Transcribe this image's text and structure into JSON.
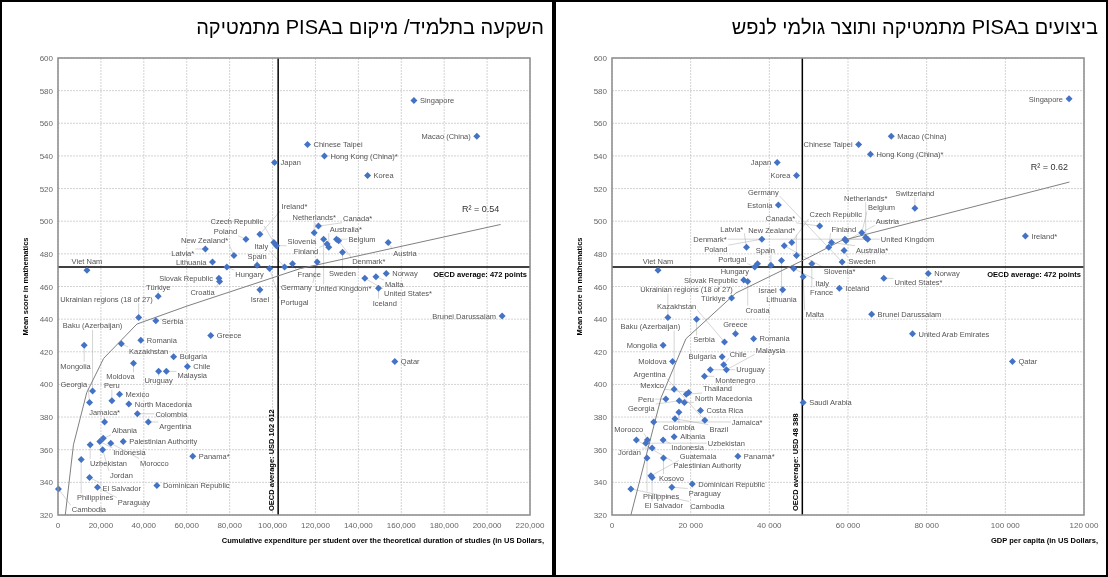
{
  "chart_data": [
    {
      "type": "scatter",
      "title": "השקעה בתלמיד/ מיקום בPISA מתמטיקה",
      "xlabel": "Cumulative expenditure per student over the theoretical duration of studies (in US Dollars,",
      "ylabel": "Mean score in mathematics",
      "xlim": [
        0,
        220000
      ],
      "xticks": [
        0,
        {
          "value": 20000,
          "label": "20,000"
        },
        {
          "value": 40000,
          "label": "40,000"
        },
        {
          "value": 60000,
          "label": "60,000"
        },
        {
          "value": 80000,
          "label": "80,000"
        },
        {
          "value": 100000,
          "label": "100,000"
        },
        {
          "value": 120000,
          "label": "120,000"
        },
        {
          "value": 140000,
          "label": "140,000"
        },
        {
          "value": 160000,
          "label": "160,000"
        },
        {
          "value": 180000,
          "label": "180,000"
        },
        {
          "value": 200000,
          "label": "200,000"
        },
        {
          "value": 220000,
          "label": "220,000"
        }
      ],
      "ylim": [
        320,
        600
      ],
      "yticks": [
        320,
        340,
        360,
        380,
        400,
        420,
        440,
        460,
        480,
        500,
        520,
        540,
        560,
        580,
        600
      ],
      "grid": true,
      "marker": "diamond",
      "series": [
        {
          "color": "#4472c4",
          "x": [
            100900,
            13500,
            94100,
            87600,
            68700,
            82000,
            72000,
            78700,
            92800,
            98600,
            100600,
            101800,
            109300,
            105600,
            75000,
            75300,
            94100,
            46700,
            119400,
            121400,
            123800,
            126200,
            125400,
            129800,
            130800,
            132600,
            120800,
            153900,
            148200,
            143000,
            153000,
            149400,
            165900,
            195200,
            116300,
            124200,
            144300,
            207000,
            157000,
            37600,
            45600,
            71200,
            29500,
            12200,
            38600,
            53900,
            35200,
            60300,
            46900,
            50500,
            16100,
            14700,
            28700,
            25100,
            33000,
            37000,
            21700,
            42100,
            21100,
            19500,
            15000,
            20800,
            24600,
            30400,
            10800,
            62800,
            14700,
            200,
            18400,
            46100
          ],
          "values": [
            536,
            470,
            492,
            489,
            483,
            479,
            475,
            472,
            473,
            471,
            487,
            485,
            474,
            472,
            465,
            463,
            458,
            454,
            493,
            497,
            489,
            484,
            486,
            489,
            488,
            481,
            475,
            487,
            466,
            465,
            468,
            459,
            574,
            552,
            547,
            540,
            528,
            442,
            414,
            441,
            439,
            430,
            425,
            424,
            427,
            417,
            413,
            411,
            408,
            408,
            396,
            389,
            394,
            390,
            388,
            382,
            377,
            377,
            367,
            365,
            363,
            360,
            364,
            365,
            354,
            356,
            343,
            336,
            337,
            338
          ],
          "value_labels": [
            "Japan",
            "Viet Nam",
            "Ireland*",
            "Poland",
            "Latvia*",
            "New Zealand*",
            "Lithuania",
            "Hungary",
            "Spain",
            "Portugal",
            "Czech Republic",
            "Slovenia",
            "France",
            "Italy",
            "Slovak Republic",
            "Croatia",
            "Israel",
            "Türkiye",
            "Netherlands*",
            "Canada*",
            "United Kingdom*",
            "Australia*",
            "Finland",
            "Belgium",
            "Denmark*",
            "Sweden",
            "Germany",
            "Austria",
            "Malta",
            "United States*",
            "Norway",
            "Iceland",
            "Singapore",
            "Macao (China)",
            "Chinese Taipei",
            "Hong Kong (China)*",
            "Korea",
            "Brunei Darussalam",
            "Qatar",
            "Ukrainian regions (18 of 27)",
            "Serbia",
            "Greece",
            "Kazakhstan",
            "Mongolia",
            "Romania",
            "Bulgaria",
            "Moldova",
            "Chile",
            "Uruguay",
            "Malaysia",
            "Baku (Azerbaijan)",
            "Georgia",
            "Mexico",
            "Peru",
            "North Macedonia",
            "Colombia",
            "Jamaica*",
            "Argentina",
            "Albania",
            "Indonesia",
            "Uzbekistan",
            "Jordan",
            "Morocco",
            "Palestinian Authority",
            "Philippines",
            "Panama*",
            "El Salvador",
            "Cambodia",
            "Paraguay",
            "Dominican Republic"
          ]
        },
        {
          "type": "line",
          "color": "#808080",
          "marker": "none",
          "x": [
            3400,
            7200,
            13400,
            21300,
            36800,
            60100,
            113000,
            206300
          ],
          "values": [
            320,
            363,
            395,
            416,
            437,
            448,
            471,
            498
          ]
        }
      ],
      "ref_lines": [
        {
          "axis": "y",
          "value": 472,
          "label": "OECD average: 472 points",
          "color": "#000000"
        },
        {
          "axis": "x",
          "value": 102612,
          "label": "OECD average: USD 102 612",
          "color": "#000000"
        }
      ],
      "annotations": [
        "R² = 0.54"
      ]
    },
    {
      "type": "scatter",
      "title": "ביצועים בPISA מתמטיקה ותוצר גולמי לנפש",
      "xlabel": "GDP per capita (in US Dollars,",
      "ylabel": "Mean score in mathematics",
      "xlim": [
        0,
        120000
      ],
      "xticks": [
        0,
        {
          "value": 20000,
          "label": "20 000"
        },
        {
          "value": 40000,
          "label": "40 000"
        },
        {
          "value": 60000,
          "label": "60 000"
        },
        {
          "value": 80000,
          "label": "80 000"
        },
        {
          "value": 100000,
          "label": "100 000"
        },
        {
          "value": 120000,
          "label": "120 000"
        }
      ],
      "ylim": [
        320,
        600
      ],
      "yticks": [
        320,
        340,
        360,
        380,
        400,
        420,
        440,
        460,
        480,
        500,
        520,
        540,
        560,
        580,
        600
      ],
      "grid": true,
      "marker": "diamond",
      "series": [
        {
          "color": "#4472c4",
          "x": [
            42000,
            46900,
            42300,
            52800,
            38100,
            45700,
            43800,
            59200,
            34200,
            55100,
            55800,
            63500,
            64500,
            65000,
            59500,
            59000,
            58500,
            46900,
            43100,
            50800,
            46200,
            40400,
            37000,
            36300,
            33500,
            34500,
            43400,
            48600,
            11700,
            30400,
            21500,
            14200,
            31400,
            36000,
            28600,
            13000,
            28000,
            15400,
            28400,
            29100,
            25000,
            23500,
            15800,
            19500,
            18900,
            13700,
            17100,
            18400,
            22500,
            17000,
            16000,
            23600,
            10600,
            15800,
            6200,
            9000,
            13000,
            8600,
            10200,
            13100,
            8900,
            32000,
            9900,
            10200,
            4800,
            15200,
            20400,
            48600,
            116200,
            71000,
            62700,
            65700,
            77000,
            105100,
            69100,
            80400,
            57800,
            66000,
            76400,
            101800
          ],
          "values": [
            536,
            528,
            510,
            497,
            489,
            487,
            485,
            489,
            484,
            484,
            487,
            493,
            490,
            489,
            488,
            482,
            475,
            479,
            476,
            474,
            471,
            473,
            474,
            472,
            464,
            463,
            458,
            466,
            470,
            453,
            440,
            441,
            431,
            428,
            426,
            424,
            417,
            414,
            412,
            409,
            409,
            405,
            397,
            395,
            394,
            391,
            390,
            389,
            384,
            383,
            379,
            378,
            377,
            368,
            366,
            366,
            366,
            364,
            361,
            355,
            355,
            356,
            344,
            343,
            336,
            337,
            339,
            389,
            575,
            552,
            547,
            541,
            508,
            491,
            465,
            468,
            459,
            443,
            431,
            414
          ],
          "value_labels": [
            "Japan",
            "Korea",
            "Estonia",
            "Canada*",
            "Poland",
            "Czech Republic",
            "Slovenia*",
            "United Kingdom",
            "Latvia*",
            "Finland",
            "Australia*",
            "Belgium",
            "Netherlands*",
            "Denmark*",
            "Austria",
            "Sweden",
            "Germany",
            "New Zealand*",
            "Lithuania",
            "France",
            "Italy",
            "Spain",
            "Hungary",
            "Portugal",
            "Slovak Republic",
            "Croatia",
            "Israel",
            "Malta",
            "Viet Nam",
            "Türkiye",
            "Serbia",
            "Ukrainian regions (18 of 27)",
            "Greece",
            "Romania",
            "Kazakhstan",
            "Mongolia",
            "Bulgaria",
            "Moldova",
            "Chile",
            "Malaysia",
            "Uruguay",
            "Montenegro",
            "Baku (Azerbaijan)",
            "Mexico",
            "Thailand",
            "Peru",
            "Georgia",
            "North Macedonia",
            "Costa Rica",
            "Colombia",
            "Brazil",
            "Argentina",
            "Jamaica*",
            "Albania",
            "Palestinian Authority",
            "Morocco",
            "Indonesia",
            "Uzbekistan",
            "Jordan",
            "Kosovo",
            "Philippines",
            "Panama*",
            "Guatemala",
            "El Salvador",
            "Cambodia",
            "Paraguay",
            "Dominican Republic",
            "Saudi Arabia",
            "Singapore",
            "Macao (China)",
            "Chinese Taipei",
            "Hong Kong (China)*",
            "Switzerland",
            "Ireland*",
            "United States*",
            "Norway",
            "Iceland",
            "Brunei Darussalam",
            "United Arab Emirates",
            "Qatar"
          ]
        },
        {
          "type": "line",
          "color": "#808080",
          "marker": "none",
          "x": [
            4800,
            12500,
            18800,
            31500,
            50200,
            58200,
            116300
          ],
          "values": [
            320,
            392,
            428,
            456,
            478,
            488,
            524
          ]
        }
      ],
      "ref_lines": [
        {
          "axis": "y",
          "value": 472,
          "label": "OECD average: 472 points",
          "color": "#000000"
        },
        {
          "axis": "x",
          "value": 48388,
          "label": "OECD average: USD 48 388",
          "color": "#000000"
        }
      ],
      "annotations": [
        "R² = 0.62"
      ]
    }
  ]
}
